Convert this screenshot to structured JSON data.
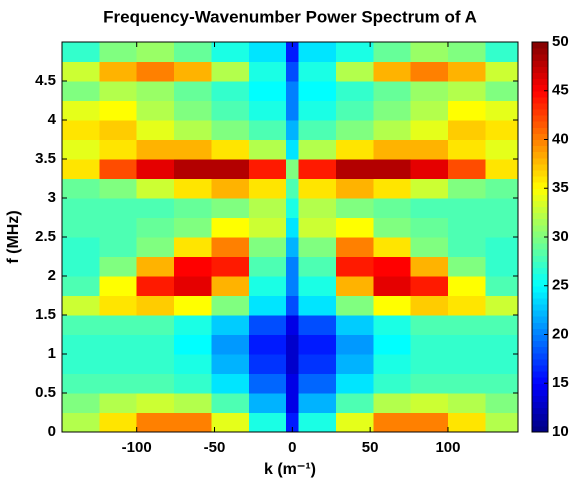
{
  "chart_data": {
    "type": "heatmap",
    "title": "Frequency-Wavenumber Power Spectrum of A",
    "xlabel": "k (m⁻¹)",
    "ylabel": "f (MHz)",
    "xlim": [
      -148,
      145
    ],
    "ylim": [
      0,
      5
    ],
    "xticks": [
      -100,
      -50,
      0,
      50,
      100
    ],
    "yticks": [
      0,
      0.5,
      1,
      1.5,
      2,
      2.5,
      3,
      3.5,
      4,
      4.5
    ],
    "colormap": "jet",
    "clim": [
      10,
      50
    ],
    "cticks": [
      10,
      15,
      20,
      25,
      30,
      35,
      40,
      45,
      50
    ],
    "xbins": [
      -148,
      -124,
      -100,
      -76,
      -52,
      -28,
      -4,
      4,
      28,
      52,
      76,
      100,
      124,
      145
    ],
    "ybins": [
      0,
      0.25,
      0.5,
      0.75,
      1,
      1.25,
      1.5,
      1.75,
      2,
      2.25,
      2.5,
      2.75,
      3,
      3.25,
      3.5,
      3.75,
      4,
      4.25,
      4.5,
      4.75,
      5
    ],
    "z": [
      [
        32,
        36,
        40,
        40,
        34,
        26,
        16,
        26,
        34,
        40,
        40,
        36,
        32
      ],
      [
        30,
        32,
        33,
        32,
        28,
        22,
        14,
        22,
        28,
        32,
        33,
        32,
        30
      ],
      [
        28,
        28,
        28,
        27,
        24,
        19,
        14,
        19,
        24,
        27,
        28,
        28,
        28
      ],
      [
        27,
        27,
        27,
        26,
        22,
        17,
        13,
        17,
        22,
        26,
        27,
        27,
        27
      ],
      [
        27,
        27,
        27,
        25,
        21,
        16,
        13,
        16,
        21,
        25,
        27,
        27,
        27
      ],
      [
        28,
        28,
        28,
        26,
        23,
        18,
        14,
        18,
        23,
        26,
        28,
        28,
        28
      ],
      [
        33,
        36,
        37,
        35,
        30,
        24,
        18,
        24,
        30,
        35,
        37,
        36,
        33
      ],
      [
        28,
        35,
        44,
        46,
        38,
        26,
        20,
        26,
        38,
        46,
        44,
        35,
        28
      ],
      [
        27,
        30,
        38,
        45,
        44,
        28,
        20,
        28,
        44,
        45,
        38,
        30,
        27
      ],
      [
        27,
        28,
        30,
        36,
        40,
        30,
        22,
        30,
        40,
        36,
        30,
        28,
        27
      ],
      [
        28,
        28,
        29,
        30,
        35,
        33,
        24,
        33,
        35,
        30,
        29,
        28,
        28
      ],
      [
        28,
        28,
        28,
        29,
        30,
        32,
        26,
        32,
        30,
        29,
        28,
        28,
        28
      ],
      [
        29,
        30,
        33,
        36,
        38,
        36,
        28,
        36,
        38,
        36,
        33,
        30,
        29
      ],
      [
        36,
        42,
        46,
        48,
        48,
        44,
        30,
        44,
        48,
        48,
        46,
        42,
        36
      ],
      [
        34,
        36,
        38,
        38,
        36,
        32,
        24,
        32,
        36,
        38,
        38,
        36,
        34
      ],
      [
        36,
        37,
        34,
        32,
        30,
        28,
        22,
        28,
        30,
        32,
        34,
        37,
        36
      ],
      [
        34,
        35,
        32,
        30,
        28,
        26,
        20,
        26,
        28,
        30,
        32,
        35,
        34
      ],
      [
        30,
        32,
        31,
        29,
        27,
        25,
        20,
        25,
        27,
        29,
        31,
        32,
        30
      ],
      [
        33,
        38,
        40,
        38,
        32,
        26,
        18,
        26,
        32,
        38,
        40,
        38,
        33
      ],
      [
        27,
        30,
        31,
        29,
        26,
        24,
        16,
        24,
        26,
        29,
        31,
        30,
        27
      ]
    ]
  }
}
